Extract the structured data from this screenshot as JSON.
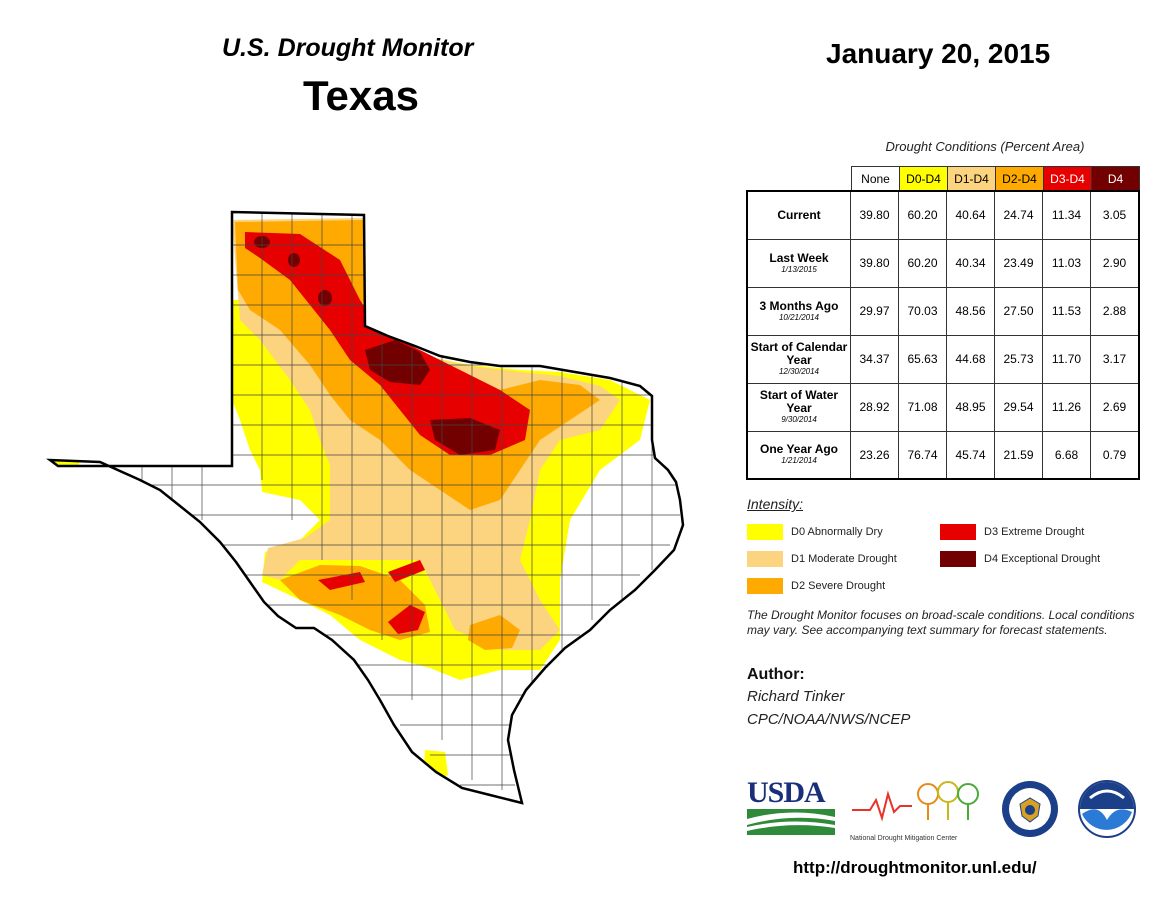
{
  "header": {
    "title": "U.S. Drought Monitor",
    "state": "Texas",
    "date": "January 20, 2015"
  },
  "table": {
    "caption": "Drought Conditions (Percent Area)",
    "columns": [
      "None",
      "D0-D4",
      "D1-D4",
      "D2-D4",
      "D3-D4",
      "D4"
    ],
    "column_colors": [
      "#ffffff",
      "#ffff00",
      "#fcd37f",
      "#ffaa00",
      "#e60000",
      "#730000"
    ],
    "rows": [
      {
        "label": "Current",
        "sublabel": "",
        "values": [
          "39.80",
          "60.20",
          "40.64",
          "24.74",
          "11.34",
          "3.05"
        ]
      },
      {
        "label": "Last Week",
        "sublabel": "1/13/2015",
        "values": [
          "39.80",
          "60.20",
          "40.34",
          "23.49",
          "11.03",
          "2.90"
        ]
      },
      {
        "label": "3 Months Ago",
        "sublabel": "10/21/2014",
        "values": [
          "29.97",
          "70.03",
          "48.56",
          "27.50",
          "11.53",
          "2.88"
        ]
      },
      {
        "label": "Start of Calendar Year",
        "sublabel": "12/30/2014",
        "values": [
          "34.37",
          "65.63",
          "44.68",
          "25.73",
          "11.70",
          "3.17"
        ]
      },
      {
        "label": "Start of Water Year",
        "sublabel": "9/30/2014",
        "values": [
          "28.92",
          "71.08",
          "48.95",
          "29.54",
          "11.26",
          "2.69"
        ]
      },
      {
        "label": "One Year Ago",
        "sublabel": "1/21/2014",
        "values": [
          "23.26",
          "76.74",
          "45.74",
          "21.59",
          "6.68",
          "0.79"
        ]
      }
    ]
  },
  "legend": {
    "title": "Intensity:",
    "items": [
      {
        "label": "D0 Abnormally Dry",
        "color": "#ffff00"
      },
      {
        "label": "D1 Moderate Drought",
        "color": "#fcd37f"
      },
      {
        "label": "D2 Severe Drought",
        "color": "#ffaa00"
      },
      {
        "label": "D3 Extreme Drought",
        "color": "#e60000"
      },
      {
        "label": "D4 Exceptional Drought",
        "color": "#730000"
      }
    ]
  },
  "note": "The Drought Monitor focuses on broad-scale conditions. Local conditions may vary. See accompanying text summary for forecast statements.",
  "author": {
    "label": "Author:",
    "name": "Richard Tinker",
    "org": "CPC/NOAA/NWS/NCEP"
  },
  "logos": {
    "usda": "USDA",
    "ndmc": "National Drought Mitigation Center"
  },
  "url": "http://droughtmonitor.unl.edu/"
}
